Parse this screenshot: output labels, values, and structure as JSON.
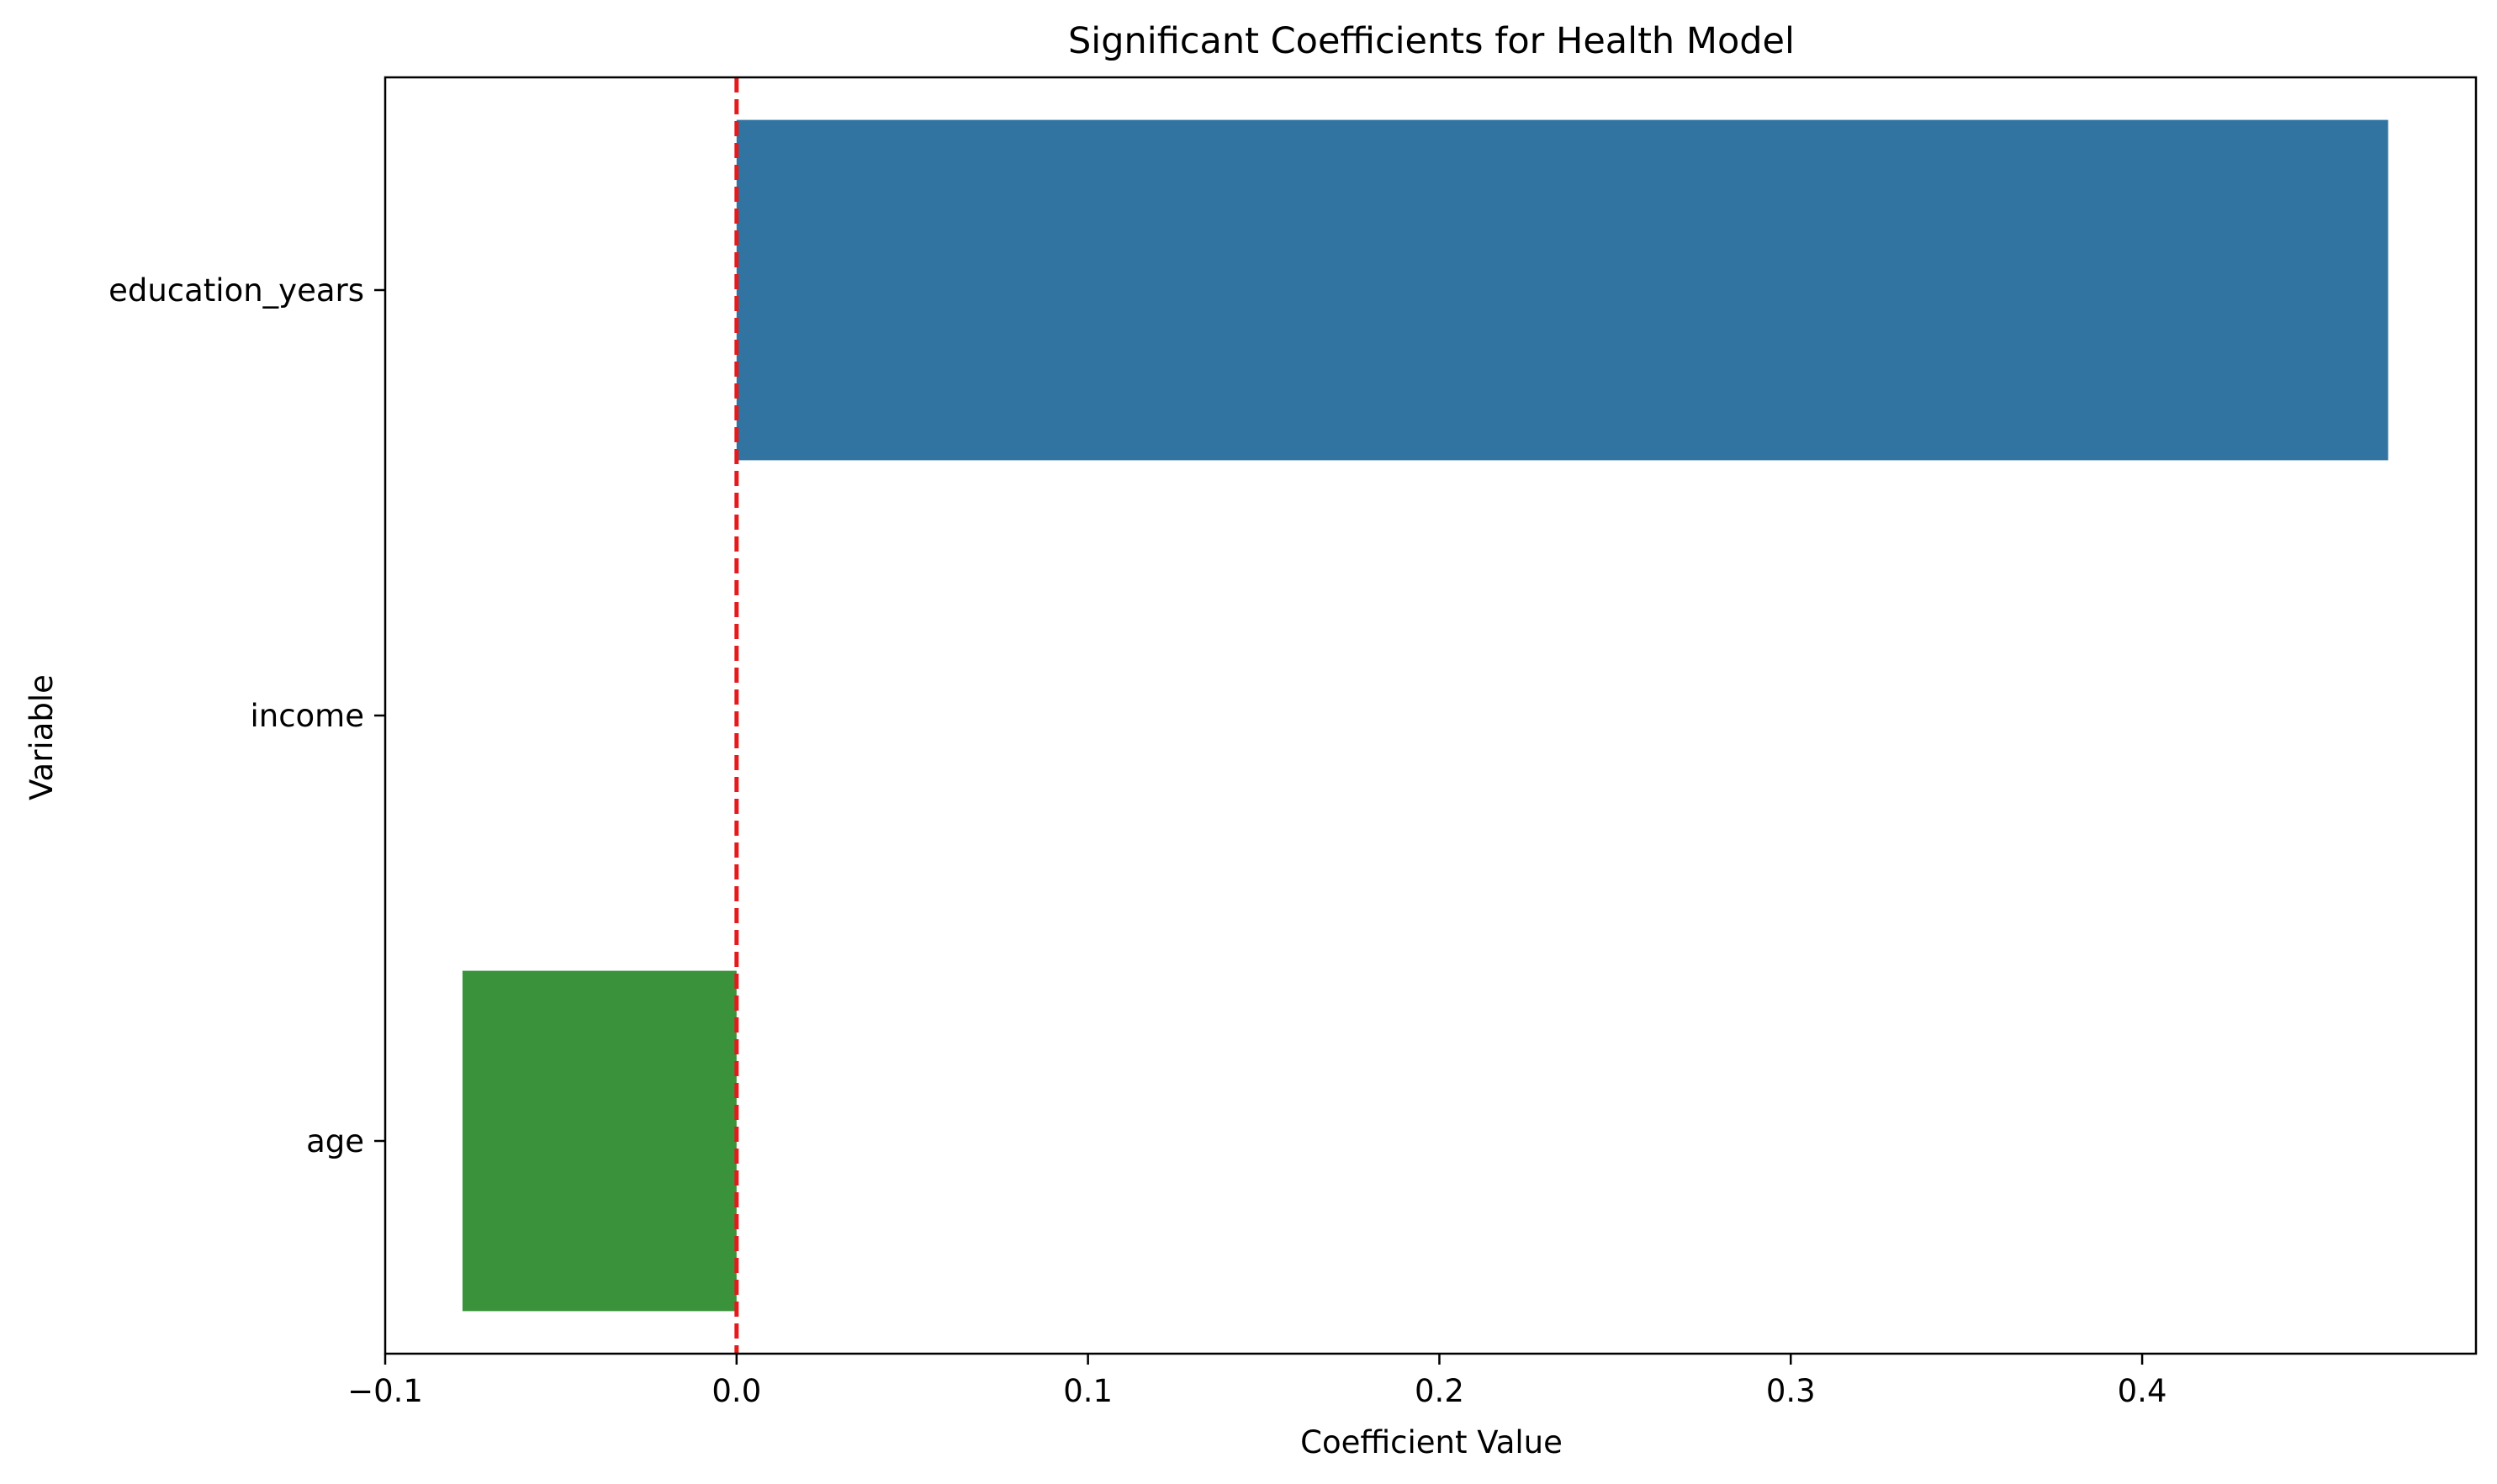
{
  "chart_data": {
    "type": "bar",
    "orientation": "horizontal",
    "title": "Significant Coefficients for Health Model",
    "xlabel": "Coefficient Value",
    "ylabel": "Variable",
    "categories": [
      "education_years",
      "income",
      "age"
    ],
    "values": [
      0.47,
      0.0,
      -0.078
    ],
    "bar_colors": [
      "#3274a1",
      "#ffffff",
      "#3a923a"
    ],
    "xlim": [
      -0.1,
      0.495
    ],
    "xticks": [
      -0.1,
      0.0,
      0.1,
      0.2,
      0.3,
      0.4
    ],
    "xtick_labels": [
      "−0.1",
      "0.0",
      "0.1",
      "0.2",
      "0.3",
      "0.4"
    ],
    "reference_line": {
      "x": 0,
      "color": "#e41a1c",
      "style": "dashed"
    },
    "grid": false,
    "legend": "none"
  }
}
